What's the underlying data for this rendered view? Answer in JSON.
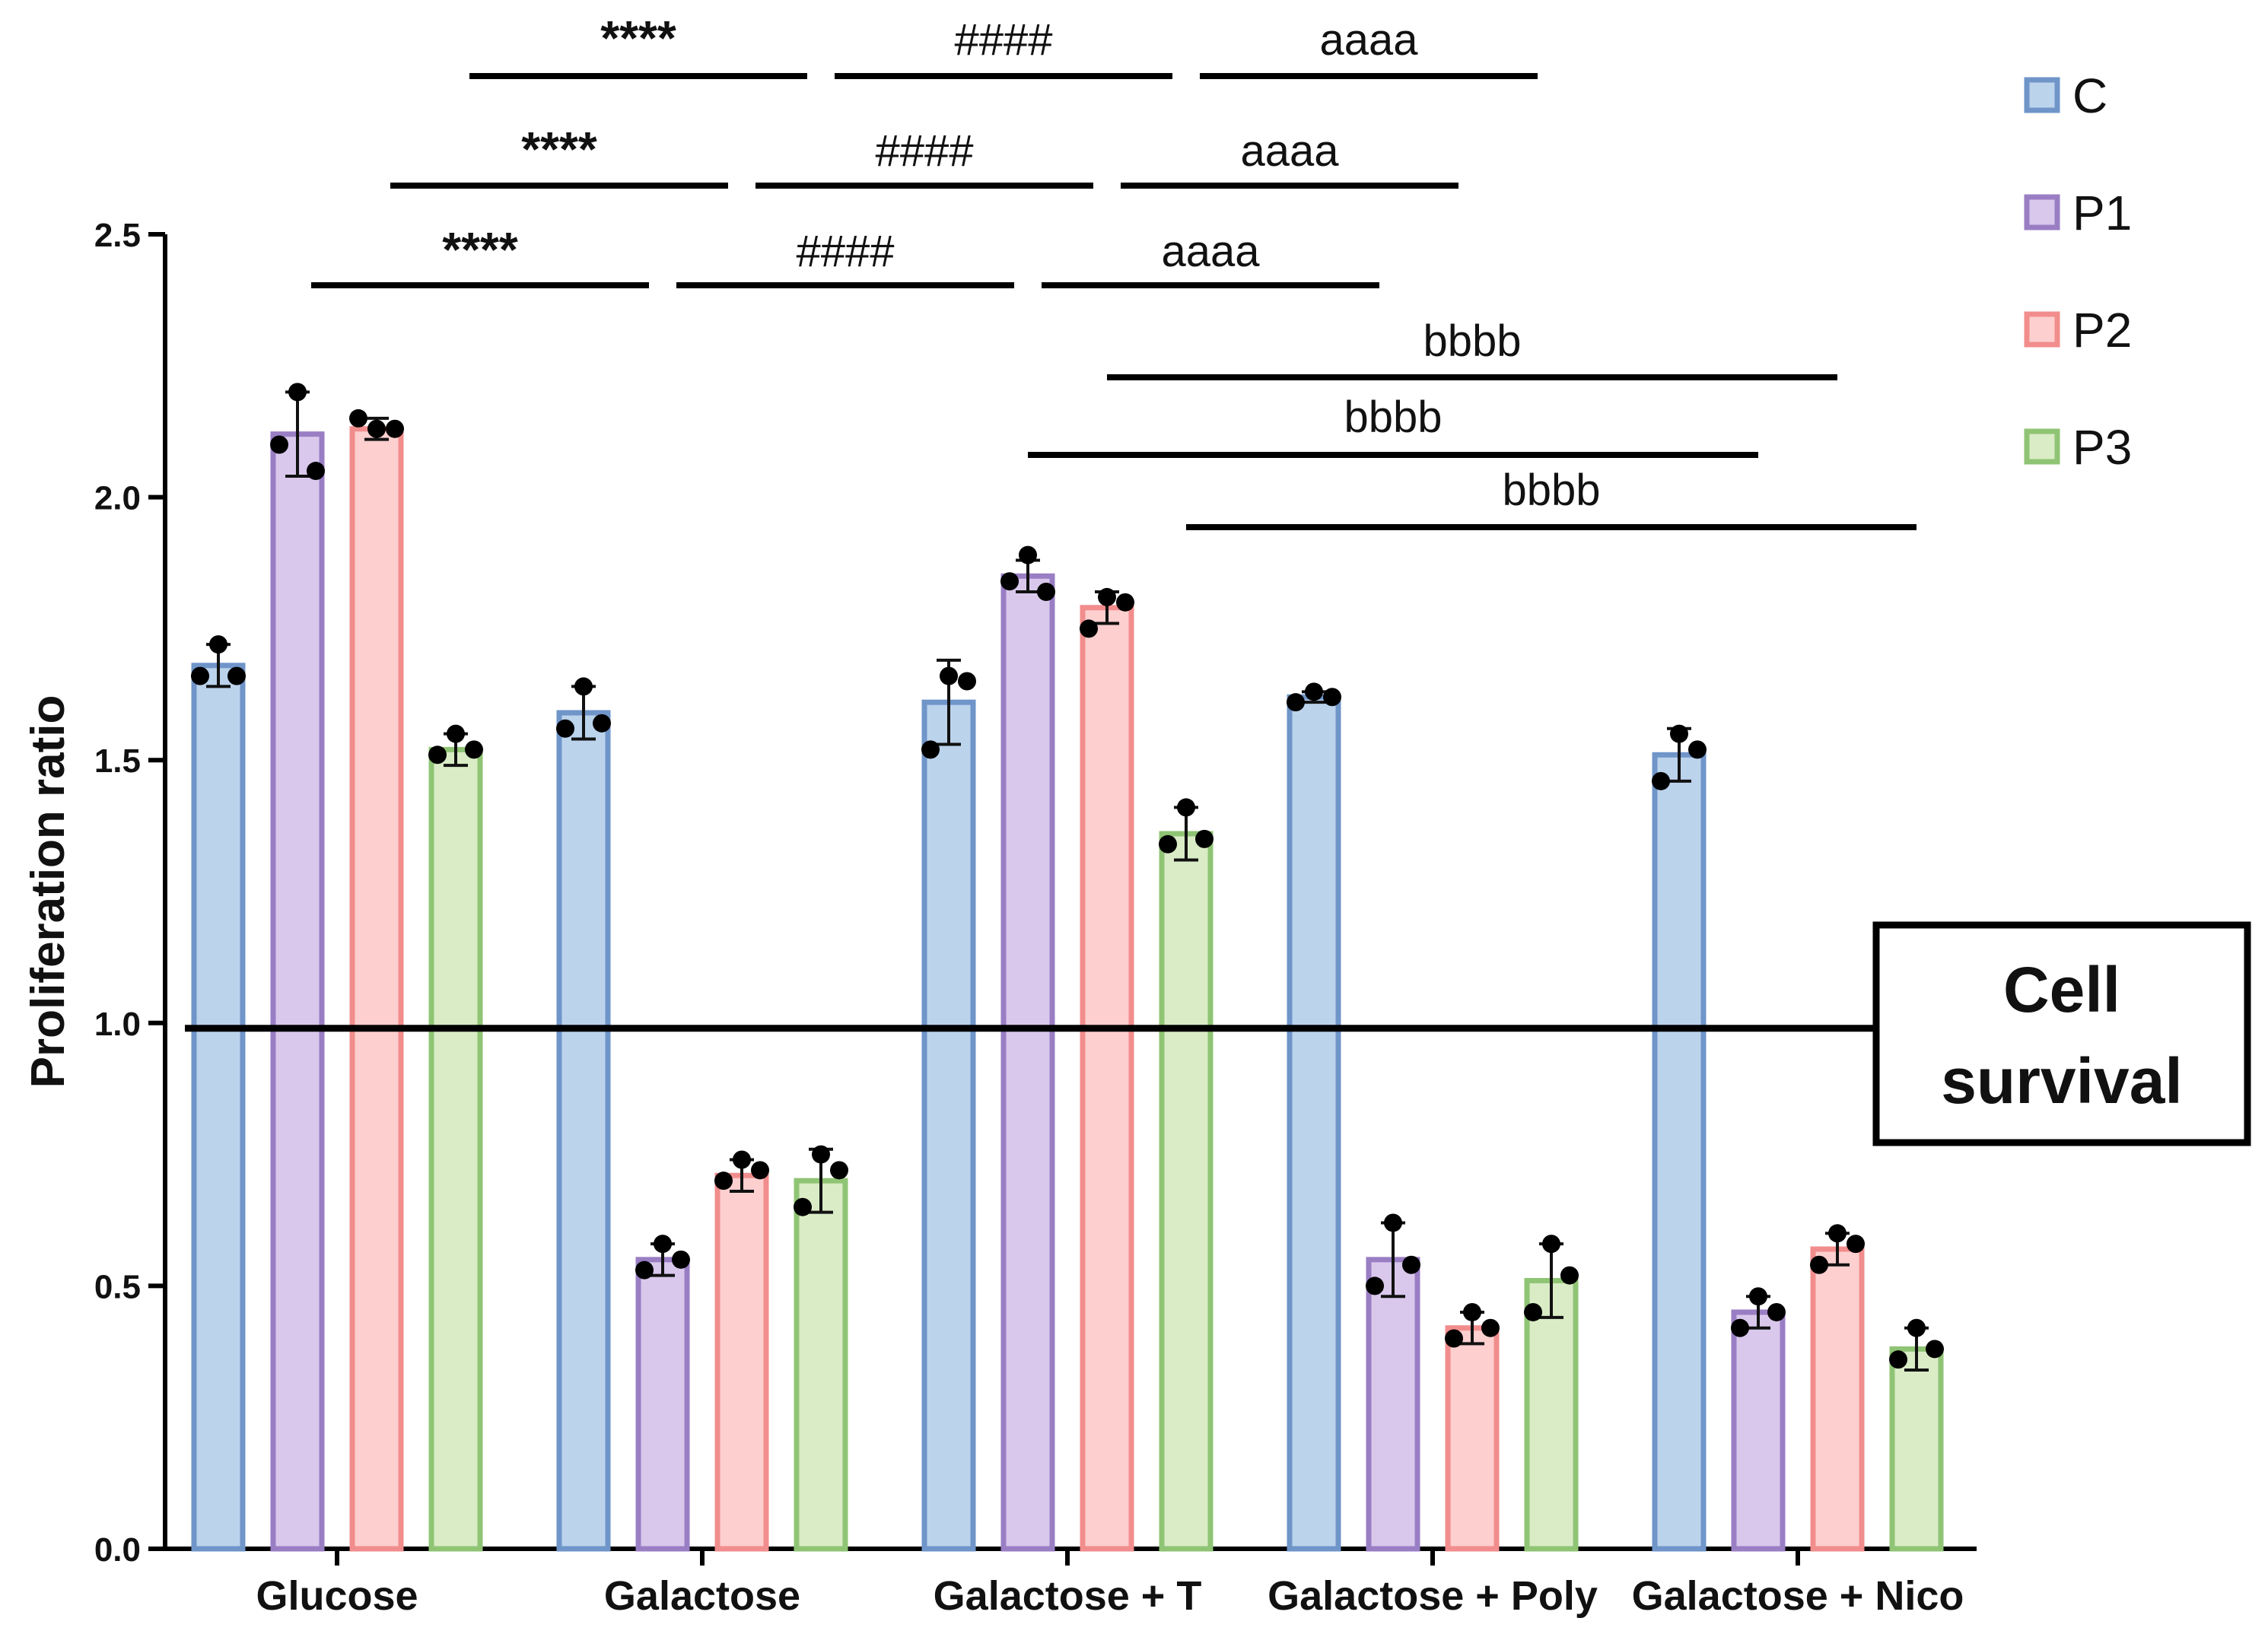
{
  "chart_data": {
    "type": "bar",
    "ylabel": "Proliferation ratio",
    "xlabel": "",
    "ylim": [
      0,
      2.5
    ],
    "yticks": [
      "0.0",
      "0.5",
      "1.0",
      "1.5",
      "2.0",
      "2.5"
    ],
    "categories": [
      "Glucose",
      "Galactose",
      "Galactose + T",
      "Galactose + Poly",
      "Galactose + Nico"
    ],
    "series": [
      {
        "name": "C",
        "fill": "#bcd3ec",
        "stroke": "#6f95c9",
        "values": [
          1.68,
          1.59,
          1.61,
          1.62,
          1.51
        ],
        "errors": [
          0.04,
          0.05,
          0.08,
          0.01,
          0.05
        ],
        "points": [
          [
            1.72,
            1.66,
            1.66
          ],
          [
            1.64,
            1.56,
            1.57
          ],
          [
            1.66,
            1.52,
            1.65
          ],
          [
            1.63,
            1.61,
            1.62
          ],
          [
            1.55,
            1.46,
            1.52
          ]
        ]
      },
      {
        "name": "P1",
        "fill": "#d9c8ec",
        "stroke": "#9a7ec4",
        "values": [
          2.12,
          0.55,
          1.85,
          0.55,
          0.45
        ],
        "errors": [
          0.08,
          0.03,
          0.03,
          0.07,
          0.03
        ],
        "points": [
          [
            2.2,
            2.1,
            2.05
          ],
          [
            0.58,
            0.53,
            0.55
          ],
          [
            1.89,
            1.84,
            1.82
          ],
          [
            0.62,
            0.5,
            0.54
          ],
          [
            0.48,
            0.42,
            0.45
          ]
        ]
      },
      {
        "name": "P2",
        "fill": "#fdcfcf",
        "stroke": "#f28d8d",
        "values": [
          2.13,
          0.71,
          1.79,
          0.42,
          0.57
        ],
        "errors": [
          0.02,
          0.03,
          0.03,
          0.03,
          0.03
        ],
        "points": [
          [
            2.13,
            2.15,
            2.13
          ],
          [
            0.74,
            0.7,
            0.72
          ],
          [
            1.81,
            1.75,
            1.8
          ],
          [
            0.45,
            0.4,
            0.42
          ],
          [
            0.6,
            0.54,
            0.58
          ]
        ]
      },
      {
        "name": "P3",
        "fill": "#d9ecc6",
        "stroke": "#8fc474",
        "values": [
          1.52,
          0.7,
          1.36,
          0.51,
          0.38
        ],
        "errors": [
          0.03,
          0.06,
          0.05,
          0.07,
          0.04
        ],
        "points": [
          [
            1.55,
            1.51,
            1.52
          ],
          [
            0.75,
            0.65,
            0.72
          ],
          [
            1.41,
            1.34,
            1.35
          ],
          [
            0.58,
            0.45,
            0.52
          ],
          [
            0.42,
            0.36,
            0.38
          ]
        ]
      }
    ],
    "reference_line": {
      "value": 0.99
    },
    "annotation_box": {
      "line1": "Cell",
      "line2": "survival"
    },
    "significance": [
      {
        "label": "****",
        "from": [
          "Glucose",
          "P3"
        ],
        "to": [
          "Galactose",
          "P3"
        ],
        "level": 1,
        "bold": true
      },
      {
        "label": "####",
        "from": [
          "Galactose",
          "P3"
        ],
        "to": [
          "Galactose + T",
          "P3"
        ],
        "level": 1,
        "bold": false
      },
      {
        "label": "aaaa",
        "from": [
          "Galactose + T",
          "P3"
        ],
        "to": [
          "Galactose + Poly",
          "P3"
        ],
        "level": 1,
        "bold": false
      },
      {
        "label": "****",
        "from": [
          "Glucose",
          "P2"
        ],
        "to": [
          "Galactose",
          "P2"
        ],
        "level": 2,
        "bold": true
      },
      {
        "label": "####",
        "from": [
          "Galactose",
          "P2"
        ],
        "to": [
          "Galactose + T",
          "P2"
        ],
        "level": 2,
        "bold": false
      },
      {
        "label": "aaaa",
        "from": [
          "Galactose + T",
          "P2"
        ],
        "to": [
          "Galactose + Poly",
          "P2"
        ],
        "level": 2,
        "bold": false
      },
      {
        "label": "****",
        "from": [
          "Glucose",
          "P1"
        ],
        "to": [
          "Galactose",
          "P1"
        ],
        "level": 3,
        "bold": true
      },
      {
        "label": "####",
        "from": [
          "Galactose",
          "P1"
        ],
        "to": [
          "Galactose + T",
          "P1"
        ],
        "level": 3,
        "bold": false
      },
      {
        "label": "aaaa",
        "from": [
          "Galactose + T",
          "P1"
        ],
        "to": [
          "Galactose + Poly",
          "P1"
        ],
        "level": 3,
        "bold": false
      },
      {
        "label": "bbbb",
        "from": [
          "Galactose + T",
          "P2"
        ],
        "to": [
          "Galactose + Nico",
          "P2"
        ],
        "level": 0,
        "bold": false
      },
      {
        "label": "bbbb",
        "from": [
          "Galactose + T",
          "P1"
        ],
        "to": [
          "Galactose + Nico",
          "P1"
        ],
        "level": -1,
        "bold": false
      },
      {
        "label": "bbbb",
        "from": [
          "Galactose + T",
          "P3"
        ],
        "to": [
          "Galactose + Nico",
          "P3"
        ],
        "level": -2,
        "bold": false
      }
    ],
    "legend": {
      "position": "top-right"
    }
  }
}
